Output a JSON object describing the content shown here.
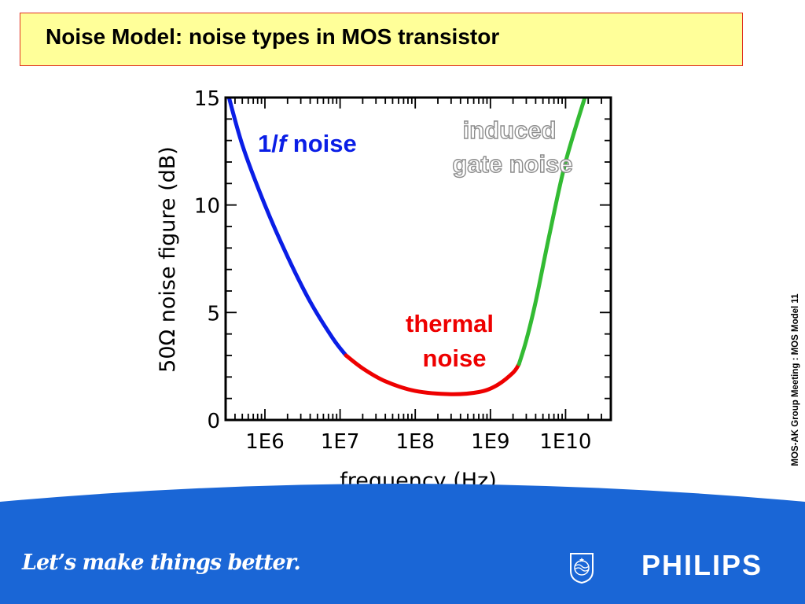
{
  "slide": {
    "title": "Noise Model: noise types in MOS transistor",
    "side_note": "MOS-AK Group Meeting : MOS Model 11"
  },
  "footer": {
    "slogan": "Let’s make things better.",
    "brand": "PHILIPS",
    "logo_icon": "philips-shield-icon",
    "background_color": "#1a66d6"
  },
  "chart_data": {
    "type": "line",
    "xlabel": "frequency (Hz)",
    "ylabel": "50Ω noise figure (dB)",
    "x_scale": "log",
    "xlim": [
      300000,
      40000000000
    ],
    "ylim": [
      0,
      15
    ],
    "x_ticks": [
      1000000,
      10000000,
      100000000,
      1000000000,
      10000000000
    ],
    "x_tick_labels": [
      "1E6",
      "1E7",
      "1E8",
      "1E9",
      "1E10"
    ],
    "y_ticks": [
      0,
      5,
      10,
      15
    ],
    "y_tick_labels": [
      "0",
      "5",
      "10",
      "15"
    ],
    "grid": false,
    "series": [
      {
        "name": "1/f noise",
        "color": "#0a1ee6",
        "points": [
          [
            300000,
            15.6
          ],
          [
            500000,
            12.8
          ],
          [
            1000000,
            10.0
          ],
          [
            2000000,
            7.6
          ],
          [
            4000000,
            5.5
          ],
          [
            8000000,
            3.8
          ],
          [
            12000000,
            3.0
          ]
        ]
      },
      {
        "name": "thermal noise",
        "color": "#ee0000",
        "points": [
          [
            12000000,
            3.0
          ],
          [
            20000000,
            2.4
          ],
          [
            40000000,
            1.8
          ],
          [
            100000000,
            1.35
          ],
          [
            300000000,
            1.2
          ],
          [
            700000000,
            1.3
          ],
          [
            1200000000,
            1.6
          ],
          [
            2000000000,
            2.2
          ],
          [
            2400000000,
            2.6
          ]
        ]
      },
      {
        "name": "induced gate noise",
        "color": "#33bb33",
        "points": [
          [
            2400000000,
            2.6
          ],
          [
            3000000000,
            3.7
          ],
          [
            4000000000,
            5.5
          ],
          [
            6000000000,
            8.5
          ],
          [
            10000000000,
            12.0
          ],
          [
            20000000000,
            15.5
          ]
        ]
      }
    ],
    "annotations": [
      {
        "text_before": "1/",
        "text_italic": "f",
        "text_after": " noise",
        "color": "#0a1ee6"
      },
      {
        "lines": [
          "thermal",
          "noise"
        ],
        "color": "#ee0000"
      },
      {
        "lines": [
          "induced",
          "gate noise"
        ],
        "color": "#ffffff",
        "outline": "#999999"
      }
    ]
  }
}
